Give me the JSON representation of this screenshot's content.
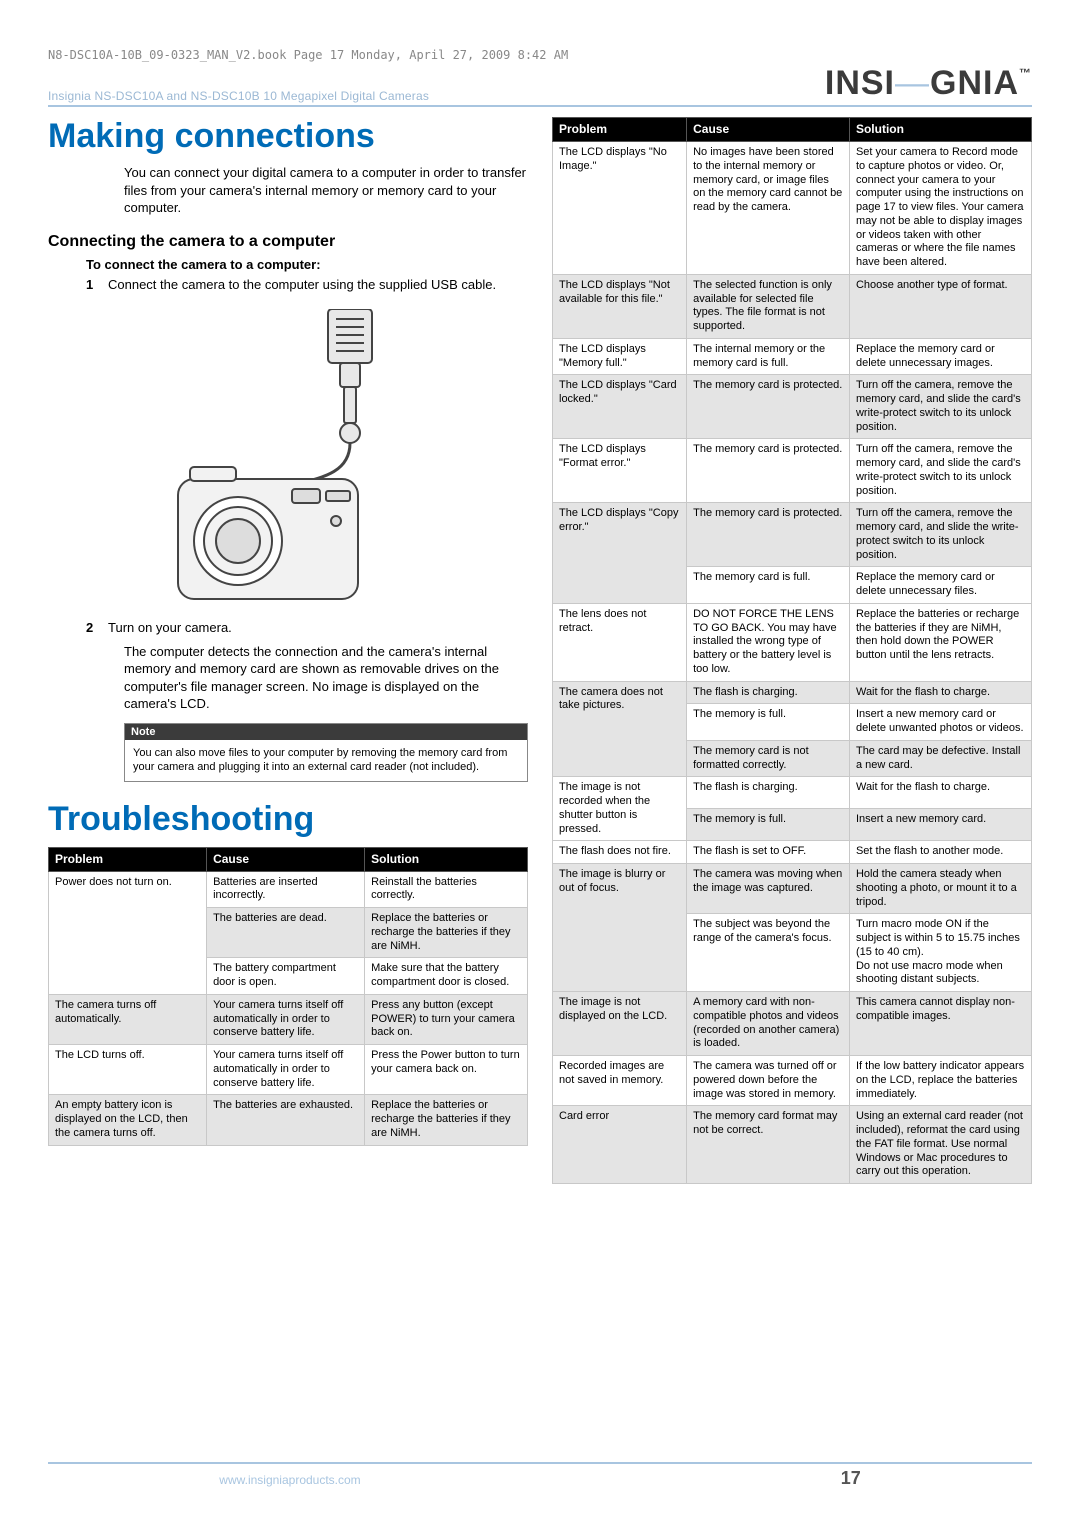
{
  "topbar": "N8-DSC10A-10B_09-0323_MAN_V2.book  Page 17  Monday, April 27, 2009  8:42 AM",
  "header": {
    "left": "Insignia NS-DSC10A and NS-DSC10B 10 Megapixel Digital Cameras",
    "logoA": "INSI",
    "logoB": "GNIA"
  },
  "sec1": {
    "title": "Making connections",
    "intro": "You can connect your digital camera to a computer in order to transfer files from your camera's internal memory or memory card to your computer.",
    "sub": "Connecting the camera to a computer",
    "task": "To connect the camera to a computer:",
    "step1": "Connect the camera to the computer using the supplied USB cable.",
    "step2": "Turn on your camera.",
    "after": "The computer detects the connection and the camera's internal memory and memory card are shown as removable drives on the computer's file manager screen. No image is displayed on the camera's LCD.",
    "noteHead": "Note",
    "noteBody": "You can also move files to your computer by removing the memory card from your camera and plugging it into an external card reader (not included)."
  },
  "sec2": {
    "title": "Troubleshooting"
  },
  "th": {
    "p": "Problem",
    "c": "Cause",
    "s": "Solution"
  },
  "t1": [
    {
      "shade": false,
      "p": "Power does not turn on.",
      "c": "Batteries are inserted incorrectly.",
      "s": "Reinstall the batteries correctly.",
      "rs": 3
    },
    {
      "shade": true,
      "p": "",
      "c": "The batteries are dead.",
      "s": "Replace the batteries or recharge the batteries if they are NiMH."
    },
    {
      "shade": false,
      "p": "",
      "c": "The battery compartment door is open.",
      "s": "Make sure that the battery compartment door is closed."
    },
    {
      "shade": true,
      "p": "The camera turns off automatically.",
      "c": "Your camera turns itself off automatically in order to conserve battery life.",
      "s": "Press any button (except POWER) to turn your camera back on."
    },
    {
      "shade": false,
      "p": "The LCD turns off.",
      "c": "Your camera turns itself off automatically in order to conserve battery life.",
      "s": "Press the Power button to turn your camera back on."
    },
    {
      "shade": true,
      "p": "An empty battery icon is displayed on the LCD, then the camera turns off.",
      "c": "The batteries are exhausted.",
      "s": "Replace the batteries or recharge the batteries if they are NiMH."
    }
  ],
  "t2": [
    {
      "shade": false,
      "p": "The LCD displays \"No Image.\"",
      "c": "No images have been stored to the internal memory or memory card, or image files on the memory card cannot be read by the camera.",
      "s": "Set your camera to Record mode to capture photos or video. Or, connect your camera to your computer using the instructions on page 17 to view files. Your camera may not be able to display images or videos taken with other cameras or where the file names have been altered."
    },
    {
      "shade": true,
      "p": "The LCD displays \"Not available for this file.\"",
      "c": "The selected function is only available for selected file types. The file format is not supported.",
      "s": "Choose another type of format."
    },
    {
      "shade": false,
      "p": "The LCD displays \"Memory full.\"",
      "c": "The internal memory or the memory card is full.",
      "s": "Replace the memory card or delete unnecessary images."
    },
    {
      "shade": true,
      "p": "The LCD displays \"Card locked.\"",
      "c": "The memory card is protected.",
      "s": "Turn off the camera, remove the memory card, and slide the card's write-protect switch to its unlock position."
    },
    {
      "shade": false,
      "p": "The LCD displays \"Format error.\"",
      "c": "The memory card is protected.",
      "s": "Turn off the camera, remove the memory card, and slide the card's write-protect switch to its unlock position."
    },
    {
      "shade": true,
      "p": "The LCD displays \"Copy error.\"",
      "c": "The memory card is protected.",
      "s": "Turn off the camera, remove the memory card, and slide the write-protect switch to its unlock position.",
      "rs": 2
    },
    {
      "shade": false,
      "p": "",
      "c": "The memory card is full.",
      "s": "Replace the memory card or delete unnecessary files."
    },
    {
      "shade": false,
      "p": "The lens does not retract.",
      "c": "DO NOT FORCE THE LENS TO GO BACK. You may have installed the wrong type of battery or the battery level is too low.",
      "s": "Replace the batteries or recharge the batteries if they are NiMH, then hold down the POWER button until the lens retracts."
    },
    {
      "shade": true,
      "p": "The camera does not take pictures.",
      "c": "The flash is charging.",
      "s": "Wait for the flash to charge.",
      "rs": 3
    },
    {
      "shade": false,
      "p": "",
      "c": "The memory is full.",
      "s": "Insert a new memory card or delete unwanted photos or videos."
    },
    {
      "shade": true,
      "p": "",
      "c": "The memory card is not formatted correctly.",
      "s": "The card may be defective. Install a new card."
    },
    {
      "shade": false,
      "p": "The image is not recorded when the shutter button is pressed.",
      "c": "The flash is charging.",
      "s": "Wait for the flash to charge.",
      "rs": 2
    },
    {
      "shade": true,
      "p": "",
      "c": "The memory is full.",
      "s": "Insert a new memory card."
    },
    {
      "shade": false,
      "p": "The flash does not fire.",
      "c": "The flash is set to OFF.",
      "s": "Set the flash to another mode."
    },
    {
      "shade": true,
      "p": "The image is blurry or out of focus.",
      "c": "The camera was moving when the image was captured.",
      "s": "Hold the camera steady when shooting a photo, or mount it to a tripod.",
      "rs": 2
    },
    {
      "shade": false,
      "p": "",
      "c": "The subject was beyond the range of the camera's focus.",
      "s": "Turn macro mode ON if the subject is within 5 to 15.75 inches (15 to 40 cm).\nDo not use macro mode when shooting distant subjects."
    },
    {
      "shade": true,
      "p": "The image is not displayed on the LCD.",
      "c": "A memory card with non-compatible photos and videos (recorded on another camera) is loaded.",
      "s": "This camera cannot display non-compatible images."
    },
    {
      "shade": false,
      "p": "Recorded images are not saved in memory.",
      "c": "The camera was turned off or powered down before the image was stored in memory.",
      "s": "If the low battery indicator appears on the LCD, replace the batteries immediately."
    },
    {
      "shade": true,
      "p": "Card error",
      "c": "The memory card format may not be correct.",
      "s": "Using an external card reader (not included), reformat the card using the FAT file format. Use normal Windows or Mac procedures to carry out this operation."
    }
  ],
  "footer": {
    "url": "www.insigniaproducts.com",
    "page": "17"
  },
  "colors": {
    "accent": "#006bb6",
    "rule": "#a8c5e0"
  }
}
